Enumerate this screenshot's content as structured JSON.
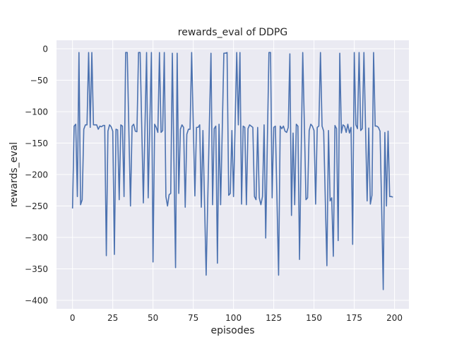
{
  "chart_data": {
    "type": "line",
    "title": "rewards_eval of DDPG",
    "xlabel": "episodes",
    "ylabel": "rewards_eval",
    "xlim": [
      -9.95,
      208.95
    ],
    "ylim": [
      -413.5,
      13.5
    ],
    "xticks": [
      0,
      25,
      50,
      75,
      100,
      125,
      150,
      175,
      200
    ],
    "yticks": [
      0,
      -50,
      -100,
      -150,
      -200,
      -250,
      -300,
      -350,
      -400
    ],
    "xtick_labels": [
      "0",
      "25",
      "50",
      "75",
      "100",
      "125",
      "150",
      "175",
      "200"
    ],
    "ytick_labels": [
      "0",
      "−50",
      "−100",
      "−150",
      "−200",
      "−250",
      "−300",
      "−350",
      "−400"
    ],
    "grid": true,
    "background": "#eaeaf2",
    "line_color": "#4c72b0",
    "values": [
      -254,
      -123,
      -120,
      -235,
      -6,
      -248,
      -240,
      -128,
      -121,
      -121,
      -6,
      -125,
      -6,
      -121,
      -121,
      -121,
      -128,
      -123,
      -124,
      -122,
      -122,
      -329,
      -131,
      -121,
      -124,
      -131,
      -327,
      -128,
      -129,
      -240,
      -121,
      -123,
      -235,
      -6,
      -6,
      -130,
      -250,
      -123,
      -120,
      -131,
      -132,
      -6,
      -6,
      -125,
      -245,
      -125,
      -6,
      -237,
      -120,
      -6,
      -339,
      -120,
      -125,
      -133,
      -6,
      -133,
      -130,
      -6,
      -235,
      -250,
      -232,
      -230,
      -7,
      -180,
      -348,
      -7,
      -230,
      -128,
      -121,
      -125,
      -252,
      -136,
      -128,
      -128,
      -6,
      -120,
      -234,
      -125,
      -125,
      -121,
      -252,
      -130,
      -245,
      -360,
      -240,
      -120,
      -7,
      -248,
      -127,
      -123,
      -341,
      -120,
      -248,
      -130,
      -7,
      -7,
      -6,
      -233,
      -230,
      -130,
      -235,
      -120,
      -6,
      -121,
      -6,
      -247,
      -123,
      -125,
      -248,
      -127,
      -121,
      -123,
      -125,
      -235,
      -240,
      -125,
      -237,
      -248,
      -235,
      -121,
      -301,
      -150,
      -6,
      -6,
      -237,
      -125,
      -123,
      -240,
      -360,
      -123,
      -127,
      -123,
      -131,
      -133,
      -125,
      -8,
      -265,
      -134,
      -248,
      -120,
      -123,
      -335,
      -170,
      -6,
      -120,
      -240,
      -237,
      -130,
      -120,
      -123,
      -130,
      -247,
      -125,
      -123,
      -6,
      -123,
      -131,
      -240,
      -345,
      -130,
      -242,
      -237,
      -330,
      -122,
      -127,
      -305,
      -7,
      -134,
      -121,
      -123,
      -133,
      -120,
      -134,
      -125,
      -311,
      -6,
      -121,
      -127,
      -6,
      -130,
      -127,
      -6,
      -125,
      -242,
      -126,
      -247,
      -233,
      -6,
      -123,
      -123,
      -125,
      -131,
      -250,
      -383,
      -133,
      -250,
      -131,
      -235,
      -235,
      -236
    ]
  }
}
